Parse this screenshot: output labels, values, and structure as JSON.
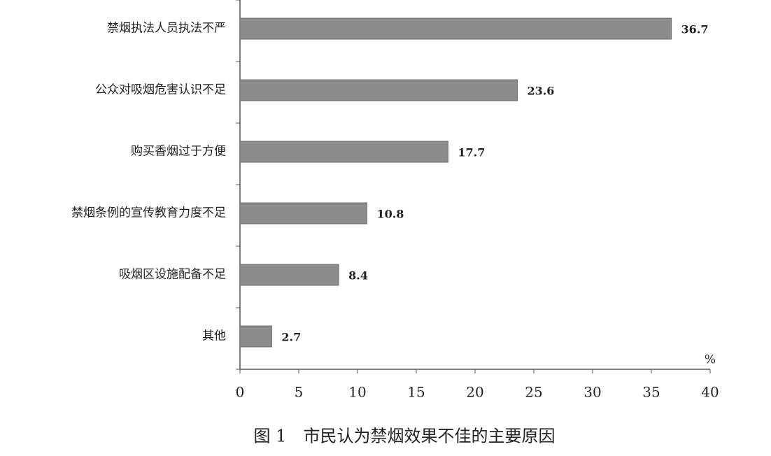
{
  "chart_data": {
    "type": "bar",
    "orientation": "horizontal",
    "title": "图 1　市民认为禁烟效果不佳的主要原因",
    "x_label": "%",
    "categories": [
      "禁烟执法人员执法不严",
      "公众对吸烟危害认识不足",
      "购买香烟过于方便",
      "禁烟条例的宣传教育力度不足",
      "吸烟区设施配备不足",
      "其他"
    ],
    "values": [
      36.7,
      23.6,
      17.7,
      10.8,
      8.4,
      2.7
    ],
    "color": "#8c8c8c",
    "xlim": [
      0,
      40
    ],
    "xticks": [
      0,
      5,
      10,
      15,
      20,
      25,
      30,
      35,
      40
    ]
  }
}
